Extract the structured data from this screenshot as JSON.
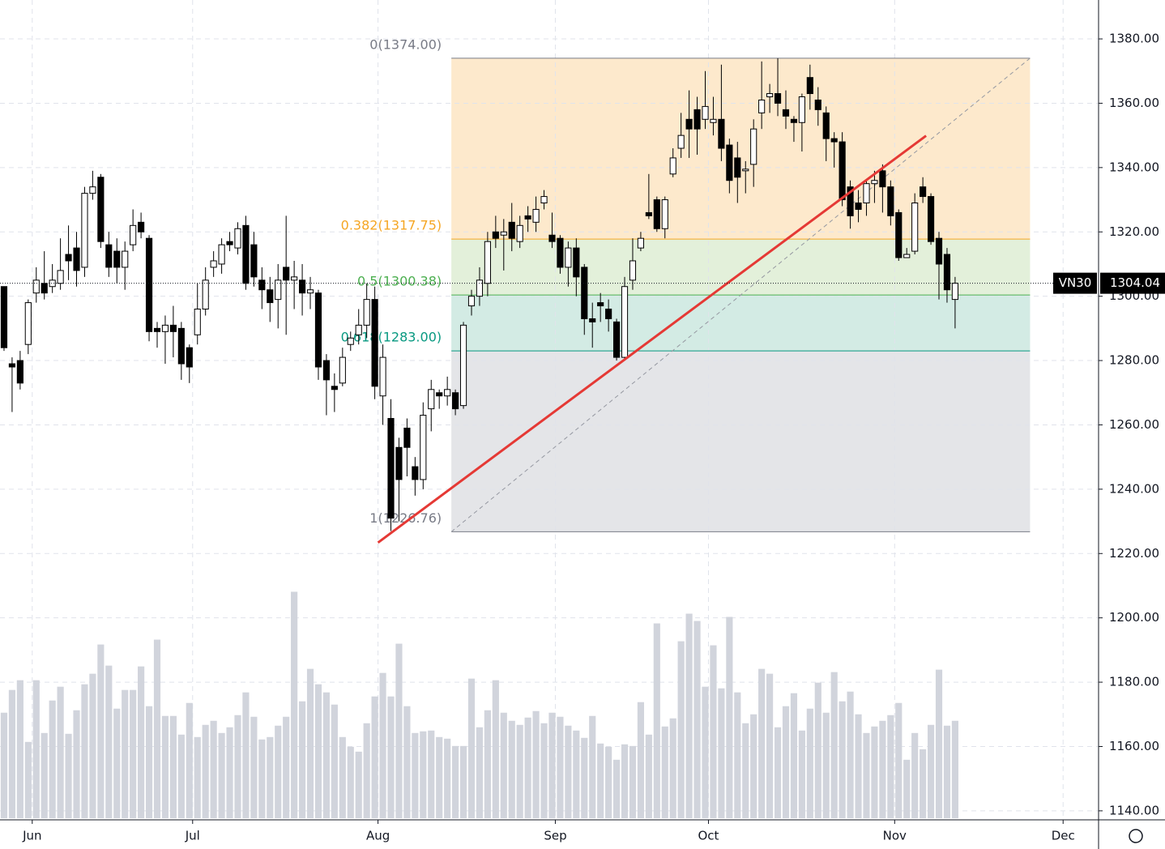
{
  "chart_data": {
    "type": "candlestick",
    "symbol": "VN30",
    "last_price": {
      "value": 1304.04,
      "label": "1304.04"
    },
    "candles": [
      [
        1303,
        1303,
        1283,
        1284
      ],
      [
        1279,
        1281,
        1264,
        1278
      ],
      [
        1280,
        1283,
        1271,
        1273
      ],
      [
        1285,
        1299,
        1282,
        1298
      ],
      [
        1301,
        1309,
        1298,
        1305
      ],
      [
        1304,
        1314,
        1299,
        1301
      ],
      [
        1303,
        1310,
        1301,
        1305
      ],
      [
        1304,
        1318,
        1302,
        1308
      ],
      [
        1313,
        1322,
        1305,
        1311
      ],
      [
        1315,
        1320,
        1303,
        1308
      ],
      [
        1309,
        1334,
        1306,
        1332
      ],
      [
        1332,
        1339,
        1330,
        1334
      ],
      [
        1337,
        1338,
        1315,
        1317
      ],
      [
        1316,
        1320,
        1306,
        1309
      ],
      [
        1314,
        1318,
        1304,
        1309
      ],
      [
        1309,
        1317,
        1302,
        1314
      ],
      [
        1316,
        1327,
        1314,
        1322
      ],
      [
        1323,
        1326,
        1318,
        1320
      ],
      [
        1318,
        1319,
        1286,
        1289
      ],
      [
        1290,
        1292,
        1284,
        1289
      ],
      [
        1289,
        1294,
        1279,
        1291
      ],
      [
        1291,
        1297,
        1281,
        1289
      ],
      [
        1290,
        1292,
        1274,
        1279
      ],
      [
        1284,
        1285,
        1273,
        1278
      ],
      [
        1288,
        1304,
        1285,
        1296
      ],
      [
        1296,
        1309,
        1294,
        1305
      ],
      [
        1309,
        1314,
        1306,
        1311
      ],
      [
        1310,
        1318,
        1307,
        1316
      ],
      [
        1317,
        1320,
        1314,
        1316
      ],
      [
        1315,
        1323,
        1313,
        1321
      ],
      [
        1322,
        1325,
        1302,
        1304
      ],
      [
        1316,
        1320,
        1303,
        1306
      ],
      [
        1305,
        1309,
        1296,
        1302
      ],
      [
        1302,
        1306,
        1292,
        1298
      ],
      [
        1299,
        1310,
        1290,
        1305
      ],
      [
        1309,
        1325,
        1288,
        1305
      ],
      [
        1305,
        1311,
        1296,
        1306
      ],
      [
        1305,
        1310,
        1294,
        1301
      ],
      [
        1301,
        1306,
        1296,
        1302
      ],
      [
        1301,
        1302,
        1274,
        1278
      ],
      [
        1280,
        1282,
        1263,
        1274
      ],
      [
        1272,
        1276,
        1264,
        1271
      ],
      [
        1273,
        1284,
        1272,
        1281
      ],
      [
        1285,
        1289,
        1283,
        1287
      ],
      [
        1288,
        1296,
        1285,
        1291
      ],
      [
        1291,
        1304,
        1287,
        1299
      ],
      [
        1299,
        1303,
        1268,
        1272
      ],
      [
        1269,
        1285,
        1260,
        1281
      ],
      [
        1262,
        1268,
        1227,
        1231
      ],
      [
        1253,
        1256,
        1230,
        1243
      ],
      [
        1259,
        1262,
        1244,
        1253
      ],
      [
        1247,
        1250,
        1238,
        1243
      ],
      [
        1243,
        1267,
        1240,
        1263
      ],
      [
        1265,
        1274,
        1258,
        1271
      ],
      [
        1270,
        1271,
        1265,
        1269
      ],
      [
        1269,
        1275,
        1266,
        1271
      ],
      [
        1270,
        1271,
        1263,
        1265
      ],
      [
        1266,
        1292,
        1265,
        1291
      ],
      [
        1297,
        1302,
        1294,
        1300
      ],
      [
        1300,
        1309,
        1297,
        1305
      ],
      [
        1304,
        1320,
        1300,
        1317
      ],
      [
        1320,
        1325,
        1315,
        1318
      ],
      [
        1319,
        1324,
        1308,
        1320
      ],
      [
        1323,
        1329,
        1314,
        1318
      ],
      [
        1317,
        1325,
        1315,
        1322
      ],
      [
        1325,
        1328,
        1320,
        1324
      ],
      [
        1323,
        1331,
        1320,
        1327
      ],
      [
        1329,
        1333,
        1327,
        1331
      ],
      [
        1319,
        1326,
        1315,
        1317
      ],
      [
        1318,
        1319,
        1307,
        1309
      ],
      [
        1309,
        1317,
        1303,
        1315
      ],
      [
        1315,
        1318,
        1300,
        1306
      ],
      [
        1309,
        1310,
        1288,
        1293
      ],
      [
        1293,
        1298,
        1284,
        1292
      ],
      [
        1298,
        1301,
        1292,
        1297
      ],
      [
        1296,
        1299,
        1289,
        1293
      ],
      [
        1292,
        1293,
        1280,
        1281
      ],
      [
        1281,
        1306,
        1280,
        1303
      ],
      [
        1305,
        1318,
        1302,
        1311
      ],
      [
        1315,
        1320,
        1314,
        1318
      ],
      [
        1326,
        1338,
        1324,
        1325
      ],
      [
        1330,
        1331,
        1320,
        1321
      ],
      [
        1321,
        1331,
        1318,
        1330
      ],
      [
        1338,
        1346,
        1337,
        1343
      ],
      [
        1346,
        1357,
        1343,
        1350
      ],
      [
        1355,
        1364,
        1343,
        1352
      ],
      [
        1358,
        1362,
        1344,
        1352
      ],
      [
        1355,
        1370,
        1352,
        1359
      ],
      [
        1354,
        1362,
        1350,
        1355
      ],
      [
        1355,
        1372,
        1342,
        1346
      ],
      [
        1347,
        1349,
        1332,
        1336
      ],
      [
        1343,
        1348,
        1329,
        1337
      ],
      [
        1339,
        1342,
        1332,
        1339.5
      ],
      [
        1341,
        1355,
        1334,
        1352
      ],
      [
        1357,
        1373,
        1352,
        1361
      ],
      [
        1362,
        1366,
        1357,
        1363
      ],
      [
        1363,
        1374,
        1356,
        1360
      ],
      [
        1358,
        1364,
        1352,
        1356
      ],
      [
        1355,
        1356,
        1348,
        1354
      ],
      [
        1354,
        1363,
        1345,
        1362
      ],
      [
        1368,
        1372,
        1358,
        1363
      ],
      [
        1361,
        1365,
        1353,
        1358
      ],
      [
        1357,
        1359,
        1342,
        1349
      ],
      [
        1349,
        1351,
        1340,
        1348
      ],
      [
        1348,
        1351,
        1328,
        1330
      ],
      [
        1334,
        1336,
        1321,
        1325
      ],
      [
        1329,
        1333,
        1323,
        1327
      ],
      [
        1329,
        1336,
        1325,
        1335
      ],
      [
        1335,
        1339,
        1329,
        1336
      ],
      [
        1339,
        1341,
        1326,
        1334
      ],
      [
        1334,
        1336,
        1322,
        1325
      ],
      [
        1326,
        1327,
        1311,
        1312
      ],
      [
        1312,
        1315,
        1312,
        1313
      ],
      [
        1314,
        1332,
        1313,
        1329
      ],
      [
        1334,
        1337,
        1329,
        1331
      ],
      [
        1331,
        1332,
        1316,
        1317
      ],
      [
        1318,
        1320,
        1299,
        1310
      ],
      [
        1313,
        1315,
        1298,
        1302
      ],
      [
        1299,
        1306,
        1290,
        1304.04
      ]
    ],
    "volume": [
      130,
      158,
      170,
      94,
      170,
      105,
      145,
      162,
      104,
      133,
      165,
      178,
      214,
      188,
      135,
      158,
      158,
      187,
      138,
      220,
      126,
      126,
      103,
      142,
      100,
      115,
      120,
      105,
      112,
      127,
      155,
      125,
      97,
      100,
      114,
      125,
      279,
      144,
      184,
      165,
      155,
      140,
      100,
      88,
      82,
      117,
      150,
      179,
      150,
      215,
      138,
      105,
      107,
      108,
      100,
      98,
      89,
      89,
      172,
      112,
      133,
      170,
      130,
      120,
      115,
      124,
      132,
      117,
      130,
      125,
      114,
      108,
      99,
      126,
      92,
      88,
      72,
      91,
      89,
      143,
      103,
      240,
      113,
      123,
      218,
      252,
      243,
      162,
      213,
      160,
      248,
      155,
      117,
      128,
      184,
      178,
      112,
      138,
      154,
      108,
      135,
      167,
      130,
      180,
      144,
      156,
      128,
      105,
      113,
      120,
      127,
      142,
      72,
      105,
      85,
      115,
      183,
      114,
      120
    ],
    "up_color": "#ffffff",
    "down_color": "#000000",
    "volume_color": "#d1d4dc",
    "xlim": [
      -0.5,
      135.7
    ],
    "xticks": [
      {
        "value": 3.5,
        "label": "Jun"
      },
      {
        "value": 23.4,
        "label": "Jul"
      },
      {
        "value": 46.4,
        "label": "Aug"
      },
      {
        "value": 68.4,
        "label": "Sep"
      },
      {
        "value": 87.4,
        "label": "Oct"
      },
      {
        "value": 110.5,
        "label": "Nov"
      },
      {
        "value": 131.4,
        "label": "Dec"
      }
    ],
    "ylim": [
      1137.2,
      1392.1
    ],
    "yticks": [
      {
        "value": 1140,
        "label": "1140.00"
      },
      {
        "value": 1160,
        "label": "1160.00"
      },
      {
        "value": 1180,
        "label": "1180.00"
      },
      {
        "value": 1200,
        "label": "1200.00"
      },
      {
        "value": 1220,
        "label": "1220.00"
      },
      {
        "value": 1240,
        "label": "1240.00"
      },
      {
        "value": 1260,
        "label": "1260.00"
      },
      {
        "value": 1280,
        "label": "1280.00"
      },
      {
        "value": 1300,
        "label": "1300.00"
      },
      {
        "value": 1320,
        "label": "1320.00"
      },
      {
        "value": 1340,
        "label": "1340.00"
      },
      {
        "value": 1360,
        "label": "1360.00"
      },
      {
        "value": 1380,
        "label": "1380.00"
      }
    ],
    "vlim": [
      0,
      1010
    ],
    "grid": true,
    "fib": {
      "x": [
        55.5,
        127.3
      ],
      "levels": [
        {
          "price": 1374,
          "label": "0(1374.00)",
          "color": "#787b86",
          "fill": "#fde9cc"
        },
        {
          "price": 1317.75,
          "label": "0.382(1317.75)",
          "color": "#f5a623",
          "fill": "#e3f0da"
        },
        {
          "price": 1300.38,
          "label": "0.5(1300.38)",
          "color": "#4caf50",
          "fill": "#d3ebe4"
        },
        {
          "price": 1283.0,
          "label": "0.618(1283.00)",
          "color": "#089981",
          "fill": "#e4e5e8"
        },
        {
          "price": 1226.76,
          "label": "1(1226.76)",
          "color": "#787b86"
        }
      ]
    },
    "trend_line": {
      "x": [
        46.4,
        114.4
      ],
      "y": [
        1223.4,
        1349.9
      ],
      "color": "#e53935"
    }
  }
}
